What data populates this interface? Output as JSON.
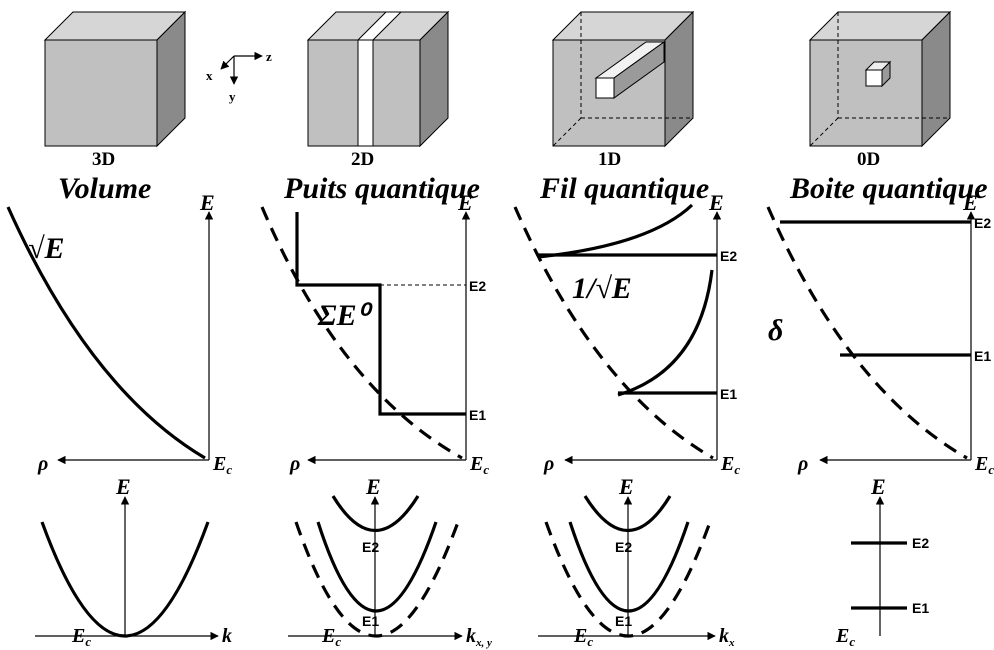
{
  "panels": [
    {
      "dimension": "3D",
      "title": "Volume",
      "dos_label": "√E"
    },
    {
      "dimension": "2D",
      "title": "Puits quantique",
      "dos_label": "ΣE⁰"
    },
    {
      "dimension": "1D",
      "title": "Fil quantique",
      "dos_label": "1/√E"
    },
    {
      "dimension": "0D",
      "title": "Boite quantique",
      "dos_label": "δ"
    }
  ],
  "axis_labels": {
    "energy": "E",
    "density": "ρ",
    "conduction_edge": "E",
    "conduction_edge_sub": "c",
    "wavevector_3d": "k",
    "wavevector_2d": "k",
    "wavevector_2d_sub": "x, y",
    "wavevector_1d": "k",
    "wavevector_1d_sub": "x"
  },
  "levels": {
    "e1": "E1",
    "e2": "E2"
  },
  "axes_icon": {
    "x": "x",
    "y": "y",
    "z": "z"
  },
  "colors": {
    "cube_front": "#c0c0c0",
    "cube_top": "#d6d6d6",
    "cube_side": "#8a8a8a",
    "line": "#000000"
  }
}
